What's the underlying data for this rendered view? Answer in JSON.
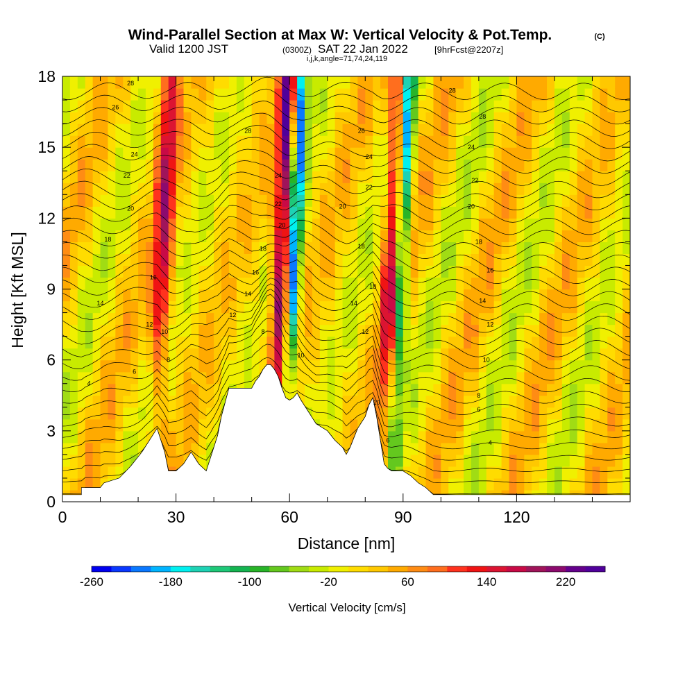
{
  "header": {
    "title_main": "Wind-Parallel Section at Max W: Vertical Velocity & Pot.Temp.",
    "title_mark": "(C)",
    "valid_prefix": "Valid 1200 JST",
    "valid_utc": "(0300Z)",
    "valid_date": "SAT 22 Jan 2022",
    "forecast_tag": "[9hrFcst@2207z]",
    "indices": "i,j,k,angle=71,74,24,119"
  },
  "chart_data": {
    "type": "heatmap",
    "xlabel": "Distance [nm]",
    "ylabel": "Height [Kft MSL]",
    "xlim": [
      0,
      150
    ],
    "ylim": [
      0,
      18
    ],
    "x_ticks": [
      0,
      30,
      60,
      90,
      120
    ],
    "y_ticks": [
      0,
      3,
      6,
      9,
      12,
      15,
      18
    ],
    "x_tick_labels": [
      "0",
      "30",
      "60",
      "90",
      "120"
    ],
    "y_tick_labels": [
      "0",
      "3",
      "6",
      "9",
      "12",
      "15",
      "18"
    ],
    "colorbar": {
      "title": "Vertical Velocity [cm/s]",
      "min": -260,
      "max": 260,
      "step": 20,
      "tick_values": [
        -260,
        -180,
        -100,
        -20,
        60,
        140,
        220
      ],
      "tick_labels": [
        "-260",
        "-180",
        "-100",
        "-20",
        "60",
        "140",
        "220"
      ],
      "colors": [
        "#0000f0",
        "#0a38ff",
        "#0a78ff",
        "#00b4ff",
        "#00f0f0",
        "#1ed2b4",
        "#1ec878",
        "#14b450",
        "#28b428",
        "#64c81e",
        "#a0dc14",
        "#c8eb00",
        "#f0f000",
        "#ffdc00",
        "#ffc800",
        "#ffaa00",
        "#ff8c14",
        "#ff6e1e",
        "#ff321e",
        "#f01414",
        "#dc1432",
        "#c80a46",
        "#a0145a",
        "#8c0a6e",
        "#64008c",
        "#50009b"
      ]
    },
    "series": [
      {
        "kind": "terrain",
        "x": [
          0,
          5,
          5,
          10,
          11,
          15,
          18,
          21,
          23,
          25,
          26,
          27,
          28,
          30,
          32,
          34,
          36,
          38,
          39,
          41,
          42,
          44,
          46,
          48,
          50,
          51,
          52,
          53,
          54,
          55,
          56,
          57,
          58,
          59,
          60,
          61,
          62,
          63,
          65,
          67,
          70,
          72,
          74,
          75,
          76,
          78,
          80,
          81,
          82,
          83,
          84,
          85,
          86,
          87,
          88,
          90,
          92,
          94,
          96,
          98,
          100,
          150
        ],
        "y": [
          0.3,
          0.3,
          0.6,
          0.6,
          0.8,
          1.0,
          1.5,
          2.1,
          2.6,
          3.1,
          2.6,
          2.1,
          1.3,
          1.3,
          1.6,
          2.1,
          1.6,
          1.3,
          1.8,
          2.8,
          3.6,
          4.8,
          4.8,
          4.8,
          4.8,
          5.1,
          5.3,
          5.6,
          5.8,
          5.8,
          5.6,
          5.3,
          4.8,
          4.4,
          4.3,
          4.4,
          4.6,
          4.3,
          3.8,
          3.3,
          3.0,
          2.6,
          2.3,
          2.0,
          2.3,
          3.1,
          3.6,
          4.1,
          4.4,
          3.6,
          2.6,
          1.6,
          1.4,
          1.3,
          1.3,
          1.3,
          1.1,
          0.8,
          0.6,
          0.3,
          0.3,
          0.3
        ]
      },
      {
        "kind": "updraft-band",
        "base_x": 25.0,
        "value_peak": 150
      },
      {
        "kind": "updraft-band",
        "base_x": 56.5,
        "value_peak": 220
      },
      {
        "kind": "updraft-band",
        "base_x": 85.5,
        "value_peak": 160
      },
      {
        "kind": "downdraft-band",
        "base_x": 59.5,
        "value_peak": -240
      },
      {
        "kind": "downdraft-band",
        "base_x": 88.0,
        "value_peak": -200
      }
    ],
    "contour_labels": [
      {
        "value": "28",
        "x": 18,
        "y": 17.7
      },
      {
        "value": "26",
        "x": 14,
        "y": 16.7
      },
      {
        "value": "24",
        "x": 19,
        "y": 14.7
      },
      {
        "value": "22",
        "x": 17,
        "y": 13.8
      },
      {
        "value": "20",
        "x": 18,
        "y": 12.4
      },
      {
        "value": "18",
        "x": 12,
        "y": 11.1
      },
      {
        "value": "16",
        "x": 24,
        "y": 9.5
      },
      {
        "value": "14",
        "x": 10,
        "y": 8.4
      },
      {
        "value": "12",
        "x": 23,
        "y": 7.5
      },
      {
        "value": "10",
        "x": 27,
        "y": 7.2
      },
      {
        "value": "8",
        "x": 28,
        "y": 6.0
      },
      {
        "value": "6",
        "x": 19,
        "y": 5.5
      },
      {
        "value": "4",
        "x": 7,
        "y": 5.0
      },
      {
        "value": "28",
        "x": 49,
        "y": 15.7
      },
      {
        "value": "24",
        "x": 57,
        "y": 13.8
      },
      {
        "value": "22",
        "x": 57,
        "y": 12.6
      },
      {
        "value": "20",
        "x": 58,
        "y": 11.7
      },
      {
        "value": "18",
        "x": 53,
        "y": 10.7
      },
      {
        "value": "16",
        "x": 51,
        "y": 9.7
      },
      {
        "value": "14",
        "x": 49,
        "y": 8.8
      },
      {
        "value": "12",
        "x": 45,
        "y": 7.9
      },
      {
        "value": "8",
        "x": 53,
        "y": 7.2
      },
      {
        "value": "10",
        "x": 63,
        "y": 6.2
      },
      {
        "value": "26",
        "x": 79,
        "y": 15.7
      },
      {
        "value": "24",
        "x": 81,
        "y": 14.6
      },
      {
        "value": "22",
        "x": 81,
        "y": 13.3
      },
      {
        "value": "20",
        "x": 74,
        "y": 12.5
      },
      {
        "value": "18",
        "x": 79,
        "y": 10.8
      },
      {
        "value": "18",
        "x": 82,
        "y": 9.1
      },
      {
        "value": "14",
        "x": 77,
        "y": 8.4
      },
      {
        "value": "12",
        "x": 80,
        "y": 7.2
      },
      {
        "value": "10",
        "x": 83,
        "y": 4.2
      },
      {
        "value": "6",
        "x": 86,
        "y": 2.6
      },
      {
        "value": "28",
        "x": 103,
        "y": 17.4
      },
      {
        "value": "28",
        "x": 111,
        "y": 16.3
      },
      {
        "value": "24",
        "x": 108,
        "y": 15.0
      },
      {
        "value": "22",
        "x": 109,
        "y": 13.6
      },
      {
        "value": "20",
        "x": 108,
        "y": 12.5
      },
      {
        "value": "18",
        "x": 110,
        "y": 11.0
      },
      {
        "value": "16",
        "x": 113,
        "y": 9.8
      },
      {
        "value": "14",
        "x": 111,
        "y": 8.5
      },
      {
        "value": "12",
        "x": 113,
        "y": 7.5
      },
      {
        "value": "10",
        "x": 112,
        "y": 6.0
      },
      {
        "value": "8",
        "x": 110,
        "y": 4.5
      },
      {
        "value": "6",
        "x": 110,
        "y": 3.9
      },
      {
        "value": "4",
        "x": 113,
        "y": 2.5
      }
    ]
  }
}
